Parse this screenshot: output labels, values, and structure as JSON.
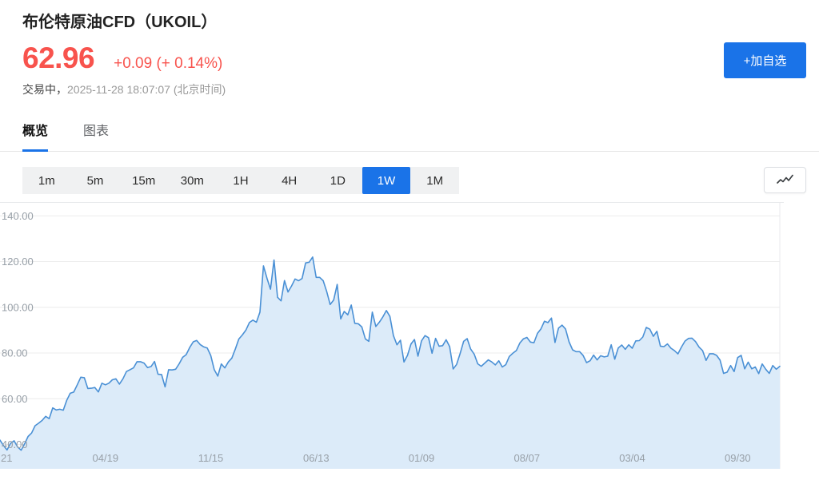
{
  "header": {
    "title": "布伦特原油CFD（UKOIL）",
    "price": "62.96",
    "change": "+0.09 (+ 0.14%)",
    "status_label": "交易中，",
    "status_time": "2025-11-28 18:07:07 (北京时间)",
    "add_watchlist_label": "+加自选"
  },
  "tabs": [
    {
      "label": "概览",
      "active": true
    },
    {
      "label": "图表",
      "active": false
    }
  ],
  "intervals": [
    {
      "label": "1m",
      "active": false
    },
    {
      "label": "5m",
      "active": false
    },
    {
      "label": "15m",
      "active": false
    },
    {
      "label": "30m",
      "active": false
    },
    {
      "label": "1H",
      "active": false
    },
    {
      "label": "4H",
      "active": false
    },
    {
      "label": "1D",
      "active": false
    },
    {
      "label": "1W",
      "active": true
    },
    {
      "label": "1M",
      "active": false
    }
  ],
  "colors": {
    "accent_blue": "#1a73e8",
    "price_red": "#f8534d",
    "segment_bg": "#f0f1f2"
  },
  "chart_data": {
    "type": "area",
    "title": "",
    "xlabel": "",
    "ylabel": "",
    "interval": "1W",
    "grid": true,
    "legend": false,
    "ylim": [
      40,
      140
    ],
    "y_ticks": [
      {
        "label": "140.00",
        "value": 140
      },
      {
        "label": "120.00",
        "value": 120
      },
      {
        "label": "100.00",
        "value": 100
      },
      {
        "label": "80.00",
        "value": 80
      },
      {
        "label": "60.00",
        "value": 60
      },
      {
        "label": "40.00",
        "value": 40
      }
    ],
    "x_tick_labels": [
      {
        "label": "21",
        "index": 0
      },
      {
        "label": "04/19",
        "index": 30
      },
      {
        "label": "11/15",
        "index": 60
      },
      {
        "label": "06/13",
        "index": 90
      },
      {
        "label": "01/09",
        "index": 120
      },
      {
        "label": "08/07",
        "index": 150
      },
      {
        "label": "03/04",
        "index": 180
      },
      {
        "label": "09/30",
        "index": 210
      }
    ],
    "values": [
      41.9,
      39.5,
      37.6,
      40.5,
      41.6,
      38.9,
      37.5,
      40.2,
      43.5,
      45,
      48.2,
      49.3,
      50.5,
      52.3,
      51.3,
      56,
      55.1,
      55.4,
      55,
      59.3,
      62.4,
      62.9,
      66.1,
      69.4,
      69.2,
      64.5,
      64.6,
      64.9,
      63,
      66.8,
      66.1,
      66.8,
      68.3,
      68.7,
      66.4,
      68.7,
      71.9,
      72.7,
      73.5,
      76.2,
      76.2,
      75.6,
      73.6,
      74.1,
      76.3,
      70.7,
      70.6,
      65.2,
      72.7,
      72.6,
      72.9,
      75.3,
      78.1,
      79.3,
      82.4,
      84.9,
      85.5,
      83.7,
      82.7,
      82.2,
      78.9,
      72.7,
      69.9,
      75.2,
      73.5,
      76.1,
      77.8,
      81.8,
      86.1,
      87.9,
      90,
      93.3,
      94.4,
      93.5,
      97.9,
      118.1,
      112.7,
      107.9,
      120.7,
      104.4,
      102.8,
      111.7,
      106.7,
      109.3,
      112.4,
      111.6,
      112.6,
      119.4,
      119.7,
      122,
      113.1,
      113.1,
      111.6,
      107,
      101.2,
      103.2,
      110,
      94.9,
      98.2,
      96.7,
      101,
      93,
      92.8,
      91.4,
      86.2,
      85.1,
      97.9,
      91.6,
      93.5,
      95.8,
      98.6,
      96,
      87.6,
      83.6,
      85.6,
      76.1,
      79,
      84,
      85.9,
      78.6,
      85.3,
      87.6,
      86.7,
      79.9,
      86.4,
      83,
      83.2,
      85.8,
      82.8,
      73,
      75,
      79.8,
      85.1,
      86.3,
      81.7,
      79.5,
      75.3,
      74.2,
      75.6,
      77,
      76.1,
      74.8,
      76.6,
      73.9,
      74.9,
      78.5,
      79.9,
      81.1,
      84.4,
      86.2,
      86.8,
      84.8,
      84.5,
      88.6,
      90.6,
      93.9,
      93.3,
      95.3,
      84.6,
      90.9,
      92.2,
      90.5,
      84.9,
      81.4,
      80.6,
      80.6,
      78.9,
      75.8,
      76.6,
      79.1,
      77,
      78.8,
      78.3,
      78.6,
      83.6,
      77.3,
      82.2,
      83.5,
      81.6,
      83.6,
      82.1,
      85.3,
      85.4,
      87,
      91.2,
      90.4,
      87.3,
      89.5,
      83,
      82.8,
      84,
      82.1,
      81.1,
      79.6,
      82.6,
      85.2,
      86.4,
      86.5,
      85,
      82.6,
      81.1,
      76.8,
      79.7,
      79.7,
      79,
      76.9,
      71.1,
      71.6,
      74.5,
      71.9,
      78,
      79,
      73.1,
      76,
      73.1,
      73.9,
      71,
      75.2,
      72.9,
      71.1,
      74.5,
      72.9,
      74.2
    ],
    "colors": {
      "line": "#4a90d5",
      "fill": "#dcebf9",
      "grid": "#ececec",
      "border": "#e8eaec",
      "axis_text": "#98a0a8"
    }
  }
}
